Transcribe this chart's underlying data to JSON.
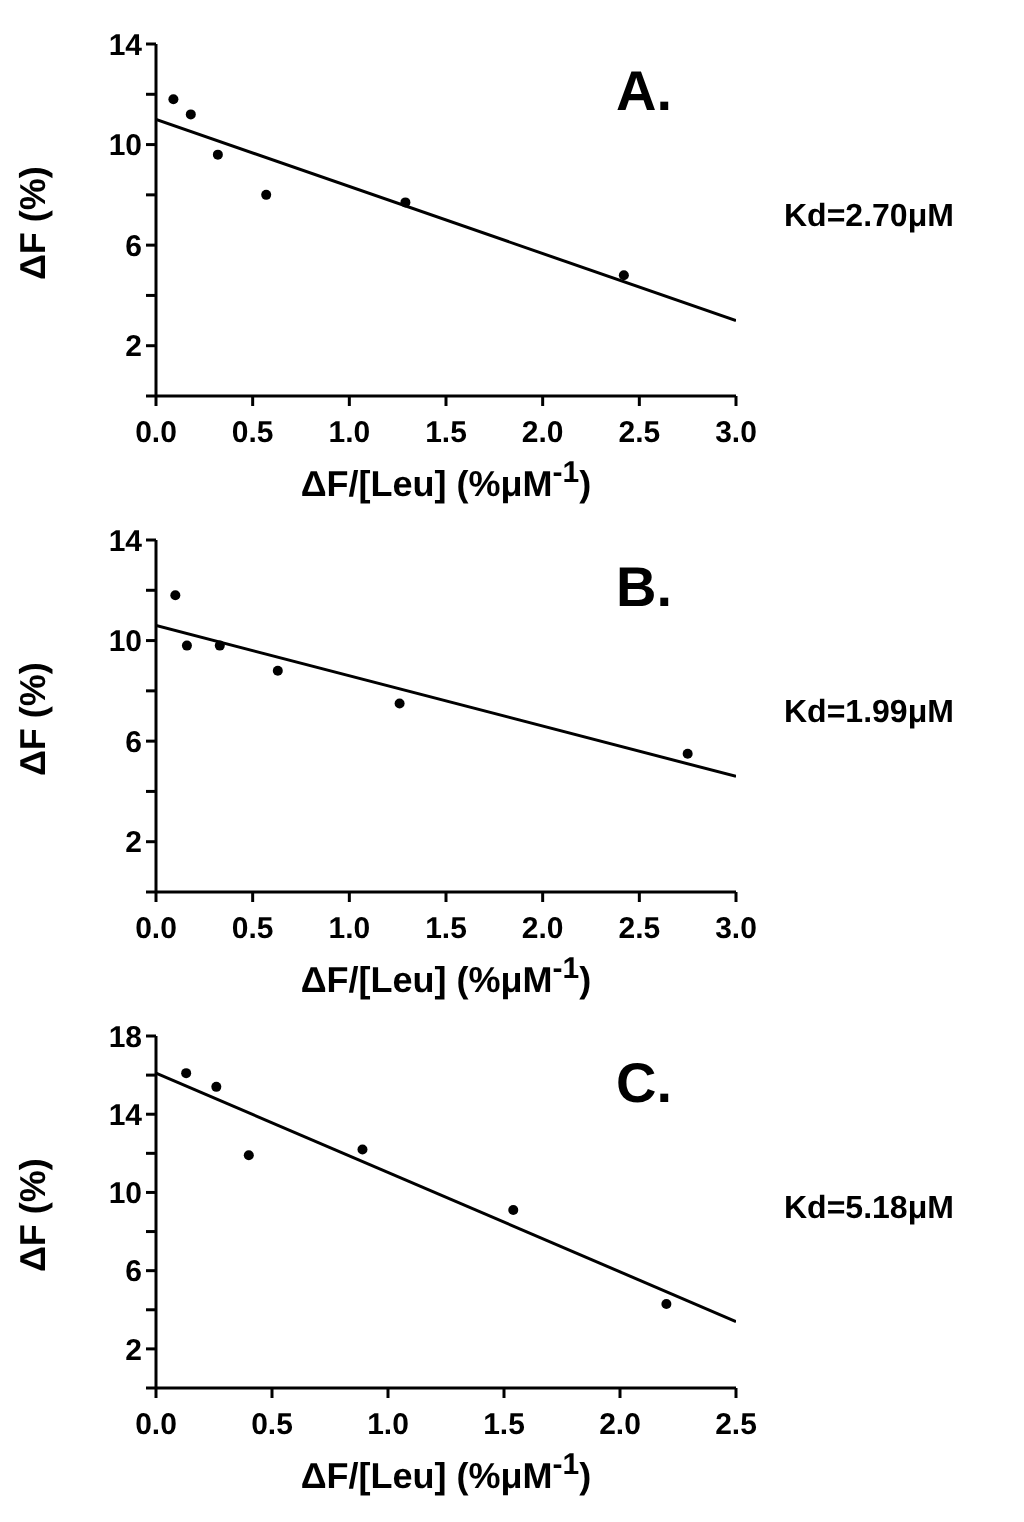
{
  "chart_data": [
    {
      "type": "scatter",
      "xlabel": "ΔF/[Leu] (%μM$^{-1}$)",
      "ylabel": "ΔF (%)",
      "annotations": [
        "A.",
        "Kd=2.70μM"
      ],
      "xlim": [
        0,
        3
      ],
      "xticks": [
        {
          "value": 0,
          "label": "0.0"
        },
        0.5,
        {
          "value": 1,
          "label": "1.0"
        },
        1.5,
        {
          "value": 2,
          "label": "2.0"
        },
        2.5,
        {
          "value": 3,
          "label": "3.0"
        }
      ],
      "ylim": [
        0,
        14
      ],
      "yticks": [
        {
          "value": 0,
          "label": null
        },
        2,
        {
          "value": 4,
          "label": null
        },
        6,
        {
          "value": 8,
          "label": null
        },
        10,
        {
          "value": 12,
          "label": null
        },
        14
      ],
      "line_style": "solid",
      "series": [
        {
          "color": "#000000",
          "marker": "circle",
          "x": [
            0.09,
            0.18,
            0.32,
            0.57,
            1.29,
            2.42
          ],
          "values": [
            11.8,
            11.2,
            9.6,
            8.0,
            7.7,
            4.8
          ]
        },
        {
          "type": "line",
          "color": "#000000",
          "marker": "none",
          "x": [
            0,
            3
          ],
          "values": [
            11.0,
            3.0
          ]
        }
      ]
    },
    {
      "type": "scatter",
      "xlabel": "ΔF/[Leu] (%μM$^{-1}$)",
      "ylabel": "ΔF (%)",
      "annotations": [
        "B.",
        "Kd=1.99μM"
      ],
      "xlim": [
        0,
        3
      ],
      "xticks": [
        {
          "value": 0,
          "label": "0.0"
        },
        0.5,
        {
          "value": 1,
          "label": "1.0"
        },
        1.5,
        {
          "value": 2,
          "label": "2.0"
        },
        2.5,
        {
          "value": 3,
          "label": "3.0"
        }
      ],
      "ylim": [
        0,
        14
      ],
      "yticks": [
        {
          "value": 0,
          "label": null
        },
        2,
        {
          "value": 4,
          "label": null
        },
        6,
        {
          "value": 8,
          "label": null
        },
        10,
        {
          "value": 12,
          "label": null
        },
        14
      ],
      "line_style": "solid",
      "series": [
        {
          "color": "#000000",
          "marker": "circle",
          "x": [
            0.1,
            0.16,
            0.33,
            0.63,
            1.26,
            2.75
          ],
          "values": [
            11.8,
            9.8,
            9.8,
            8.8,
            7.5,
            5.5
          ]
        },
        {
          "type": "line",
          "color": "#000000",
          "marker": "none",
          "x": [
            0,
            3
          ],
          "values": [
            10.6,
            4.6
          ]
        }
      ]
    },
    {
      "type": "scatter",
      "xlabel": "ΔF/[Leu] (%μM$^{-1}$)",
      "ylabel": "ΔF (%)",
      "annotations": [
        "C.",
        "Kd=5.18μM"
      ],
      "xlim": [
        0,
        2.5
      ],
      "xticks": [
        {
          "value": 0,
          "label": "0.0"
        },
        0.5,
        {
          "value": 1,
          "label": "1.0"
        },
        1.5,
        {
          "value": 2,
          "label": "2.0"
        },
        2.5
      ],
      "ylim": [
        0,
        18
      ],
      "yticks": [
        {
          "value": 0,
          "label": null
        },
        2,
        {
          "value": 4,
          "label": null
        },
        6,
        {
          "value": 8,
          "label": null
        },
        10,
        {
          "value": 12,
          "label": null
        },
        14,
        {
          "value": 16,
          "label": null
        },
        18
      ],
      "line_style": "solid",
      "series": [
        {
          "color": "#000000",
          "marker": "circle",
          "x": [
            0.13,
            0.26,
            0.4,
            0.89,
            1.54,
            2.2
          ],
          "values": [
            16.1,
            15.4,
            11.9,
            12.2,
            9.1,
            4.3
          ]
        },
        {
          "type": "line",
          "color": "#000000",
          "marker": "none",
          "x": [
            0,
            2.5
          ],
          "values": [
            16.1,
            3.4
          ]
        }
      ]
    }
  ]
}
